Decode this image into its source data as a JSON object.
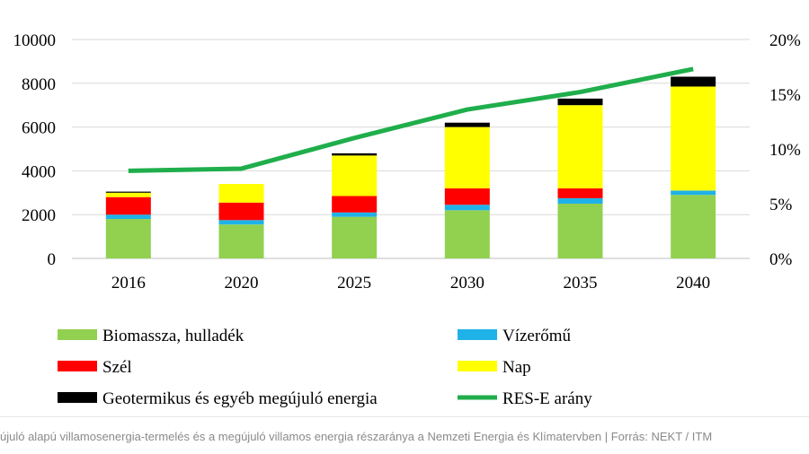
{
  "chart_data": {
    "type": "bar",
    "stacked": true,
    "categories": [
      "2016",
      "2020",
      "2025",
      "2030",
      "2035",
      "2040"
    ],
    "series": [
      {
        "name": "Biomassza, hulladék",
        "color": "#92d050",
        "values": [
          1800,
          1550,
          1900,
          2200,
          2500,
          2900
        ]
      },
      {
        "name": "Vízerőmű",
        "color": "#1fb2e8",
        "values": [
          200,
          200,
          200,
          250,
          250,
          200
        ]
      },
      {
        "name": "Szél",
        "color": "#ff0000",
        "values": [
          800,
          800,
          750,
          750,
          450,
          0
        ]
      },
      {
        "name": "Nap",
        "color": "#ffff00",
        "values": [
          200,
          850,
          1850,
          2800,
          3800,
          4750
        ]
      },
      {
        "name": "Geotermikus és egyéb megújuló energia",
        "color": "#000000",
        "values": [
          50,
          0,
          100,
          200,
          300,
          450
        ]
      }
    ],
    "line_series": {
      "name": "RES-E arány",
      "color": "#1fae4b",
      "axis": "right",
      "values": [
        8.0,
        8.2,
        11.0,
        13.6,
        15.2,
        17.3
      ]
    },
    "y_left": {
      "min": 0,
      "max": 10000,
      "ticks": [
        "0",
        "2000",
        "4000",
        "6000",
        "8000",
        "10000"
      ]
    },
    "y_right": {
      "min": 0,
      "max": 20,
      "ticks": [
        "0%",
        "5%",
        "10%",
        "15%",
        "20%"
      ]
    },
    "grid": true,
    "legend_position": "bottom"
  },
  "caption": "újuló alapú villamosenergia-termelés és a megújuló villamos energia részaránya a Nemzeti Energia és Klímatervben  |  Forrás: NEKT / ITM"
}
